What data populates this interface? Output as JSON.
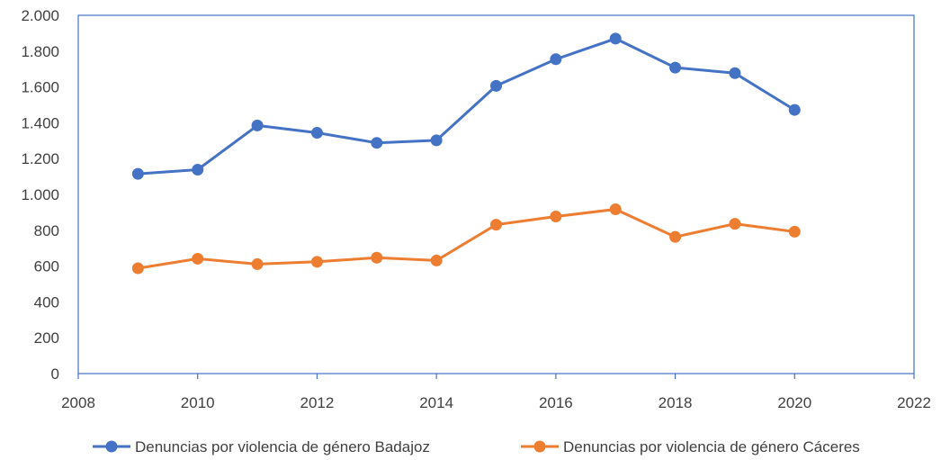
{
  "chart_data": {
    "type": "line",
    "title": "",
    "xlabel": "",
    "ylabel": "",
    "xlim": [
      2008,
      2022
    ],
    "ylim": [
      0,
      2000
    ],
    "x_ticks": [
      2008,
      2010,
      2012,
      2014,
      2016,
      2018,
      2020,
      2022
    ],
    "x_tick_labels": [
      "2008",
      "2010",
      "2012",
      "2014",
      "2016",
      "2018",
      "2020",
      "2022"
    ],
    "y_ticks": [
      0,
      200,
      400,
      600,
      800,
      1000,
      1200,
      1400,
      1600,
      1800,
      2000
    ],
    "y_tick_labels": [
      "0",
      "200",
      "400",
      "600",
      "800",
      "1.000",
      "1.200",
      "1.400",
      "1.600",
      "1.800",
      "2.000"
    ],
    "grid": false,
    "legend_position": "bottom",
    "x": [
      2009,
      2010,
      2011,
      2012,
      2013,
      2014,
      2015,
      2016,
      2017,
      2018,
      2019,
      2020
    ],
    "series": [
      {
        "name": "Denuncias por violencia de género Badajoz",
        "color": "#4472C4",
        "values": [
          1115,
          1138,
          1385,
          1344,
          1288,
          1302,
          1606,
          1755,
          1870,
          1708,
          1677,
          1472
        ]
      },
      {
        "name": "Denuncias por violencia de género Cáceres",
        "color": "#ED7D31",
        "values": [
          588,
          641,
          611,
          624,
          647,
          631,
          831,
          877,
          917,
          763,
          836,
          792
        ]
      }
    ]
  }
}
